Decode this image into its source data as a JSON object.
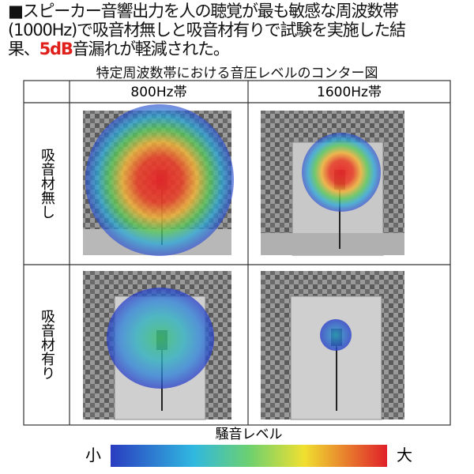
{
  "header": {
    "line1": "■スピーカー音響出力を人の聴覚が最も敏感な周波数帯",
    "line2": "(1000Hz)で吸音材無しと吸音材有りで試験を実施した結",
    "line3_before": "果、",
    "highlight": "5dB",
    "line3_after": "音漏れが軽減された。"
  },
  "figure": {
    "title": "特定周波数帯における音圧レベルのコンター図"
  },
  "table": {
    "columns": [
      "800Hz帯",
      "1600Hz帯"
    ],
    "rows": [
      "吸音材無し",
      "吸音材有り"
    ]
  },
  "legend": {
    "title": "騒音レベル",
    "min": "小",
    "max": "大"
  }
}
